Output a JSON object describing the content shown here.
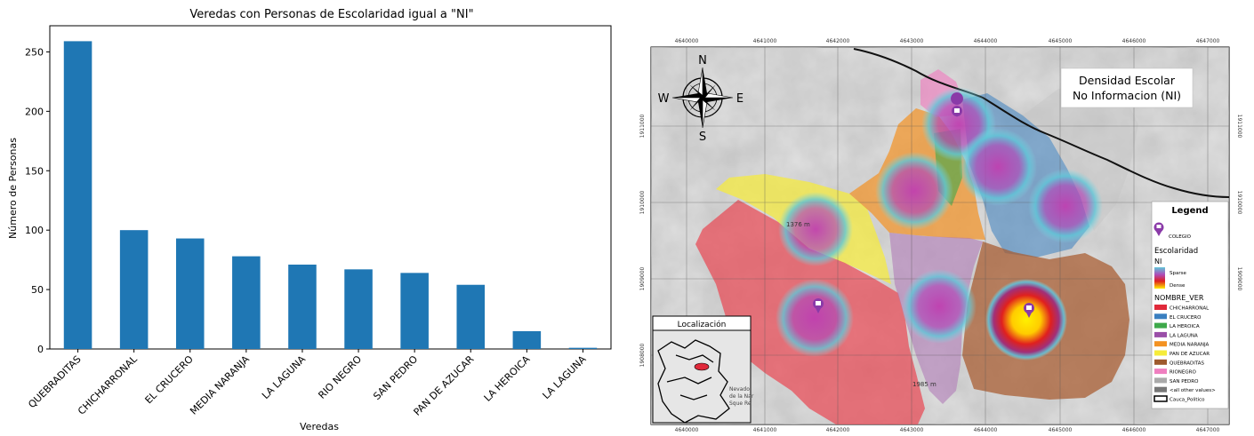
{
  "chart_data": [
    {
      "type": "bar",
      "title": "Veredas con Personas de Escolaridad igual a \"NI\"",
      "xlabel": "Veredas",
      "ylabel": "Número de Personas",
      "categories": [
        "QUEBRADITAS",
        "CHICHARRONAL",
        "EL CRUCERO",
        "MEDIA NARANJA",
        "LA LAGUNA",
        "RIO NEGRO",
        "SAN PEDRO",
        "PAN DE AZUCAR",
        "LA HEROICA",
        "LA LAGUNA"
      ],
      "values": [
        259,
        100,
        93,
        78,
        71,
        67,
        64,
        54,
        15,
        1
      ],
      "ylim": [
        0,
        272
      ],
      "yticks": [
        0,
        50,
        100,
        150,
        200,
        250
      ],
      "color": "#1f77b4",
      "grid": false
    }
  ],
  "map": {
    "title_line1": "Densidad Escolar",
    "title_line2": "No Informacion (NI)",
    "compass": {
      "n": "N",
      "s": "S",
      "e": "E",
      "w": "W"
    },
    "x_ticks": [
      "4640000",
      "4641000",
      "4642000",
      "4643000",
      "4644000",
      "4645000",
      "4646000",
      "4647000"
    ],
    "y_ticks": [
      "1911000",
      "1910000",
      "1909000",
      "1908000"
    ],
    "elevation_labels": [
      "1376 m",
      "1985 m"
    ],
    "inset_title": "Localización",
    "inset_text": [
      "Nevado",
      "de la Nar",
      "Sque Re"
    ],
    "legend": {
      "title": "Legend",
      "colegio_label": "COLEGIO",
      "escolaridad_label": "Escolaridad",
      "ni_label": "NI",
      "sparse_label": "Sparse",
      "dense_label": "Dense",
      "nombre_ver_label": "NOMBRE_VER",
      "items": [
        {
          "label": "CHICHARRONAL",
          "color": "#e0293a"
        },
        {
          "label": "EL CRUCERO",
          "color": "#3a7fc0"
        },
        {
          "label": "LA HEROICA",
          "color": "#3ea84a"
        },
        {
          "label": "LA LAGUNA",
          "color": "#9a4fa8"
        },
        {
          "label": "MEDIA NARANJA",
          "color": "#f39222"
        },
        {
          "label": "PAN DE AZUCAR",
          "color": "#f6ec3a"
        },
        {
          "label": "QUEBRADITAS",
          "color": "#9e5a2e"
        },
        {
          "label": "RIONEGRO",
          "color": "#ef7fc0"
        },
        {
          "label": "SAN PEDRO",
          "color": "#aaaaaa"
        },
        {
          "label": "<all other values>",
          "color": "#777777"
        },
        {
          "label": "Cauca_Politico",
          "color": "#ffffff"
        }
      ]
    }
  }
}
